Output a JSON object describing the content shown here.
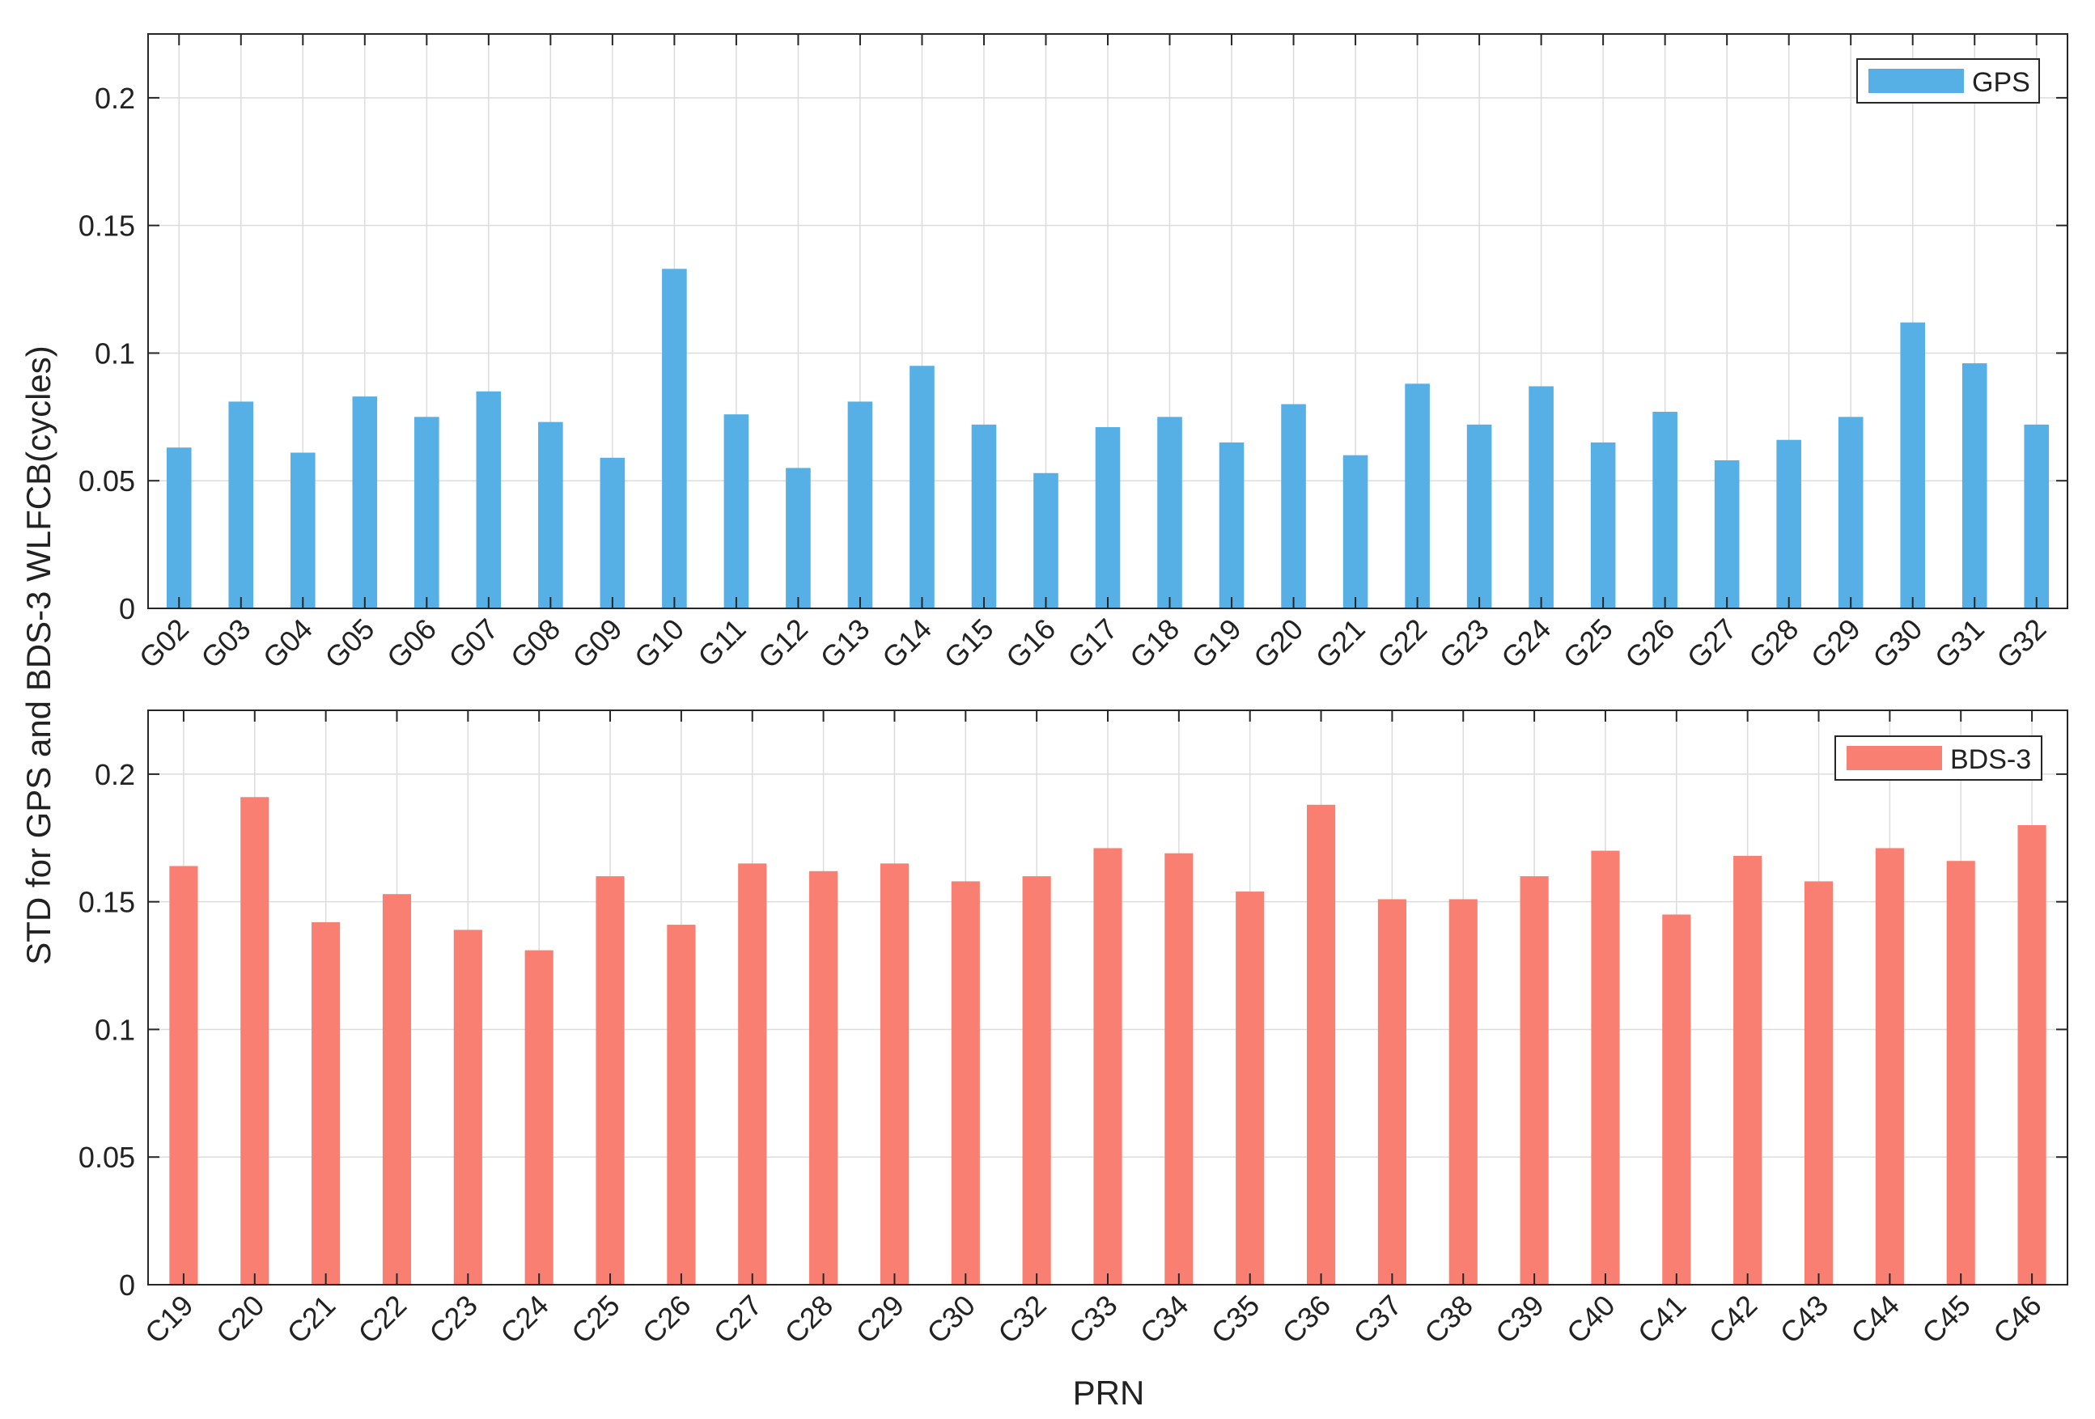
{
  "figure": {
    "ylabel": "STD for GPS and BDS-3 WLFCB(cycles)",
    "xlabel": "PRN"
  },
  "colors": {
    "gps": "#56B0E6",
    "bds": "#F87F72",
    "axis": "#262626",
    "grid": "#dcdcdc"
  },
  "chart_data": [
    {
      "type": "bar",
      "title": "",
      "xlabel": "",
      "ylabel": "",
      "ylim": [
        0,
        0.225
      ],
      "yticks": [
        0,
        0.05,
        0.1,
        0.15,
        0.2
      ],
      "ytick_labels": [
        "0",
        "0.05",
        "0.1",
        "0.15",
        "0.2"
      ],
      "grid": true,
      "legend_position": "top-right",
      "categories": [
        "G02",
        "G03",
        "G04",
        "G05",
        "G06",
        "G07",
        "G08",
        "G09",
        "G10",
        "G11",
        "G12",
        "G13",
        "G14",
        "G15",
        "G16",
        "G17",
        "G18",
        "G19",
        "G20",
        "G21",
        "G22",
        "G23",
        "G24",
        "G25",
        "G26",
        "G27",
        "G28",
        "G29",
        "G30",
        "G31",
        "G32"
      ],
      "series": [
        {
          "name": "GPS",
          "values": [
            0.063,
            0.081,
            0.061,
            0.083,
            0.075,
            0.085,
            0.073,
            0.059,
            0.133,
            0.076,
            0.055,
            0.081,
            0.095,
            0.072,
            0.053,
            0.071,
            0.075,
            0.065,
            0.08,
            0.06,
            0.088,
            0.072,
            0.087,
            0.065,
            0.077,
            0.058,
            0.066,
            0.075,
            0.112,
            0.096,
            0.072
          ]
        }
      ]
    },
    {
      "type": "bar",
      "title": "",
      "xlabel": "PRN",
      "ylabel": "",
      "ylim": [
        0,
        0.225
      ],
      "yticks": [
        0,
        0.05,
        0.1,
        0.15,
        0.2
      ],
      "ytick_labels": [
        "0",
        "0.05",
        "0.1",
        "0.15",
        "0.2"
      ],
      "grid": true,
      "legend_position": "top-right",
      "categories": [
        "C19",
        "C20",
        "C21",
        "C22",
        "C23",
        "C24",
        "C25",
        "C26",
        "C27",
        "C28",
        "C29",
        "C30",
        "C32",
        "C33",
        "C34",
        "C35",
        "C36",
        "C37",
        "C38",
        "C39",
        "C40",
        "C41",
        "C42",
        "C43",
        "C44",
        "C45",
        "C46"
      ],
      "series": [
        {
          "name": "BDS-3",
          "values": [
            0.164,
            0.191,
            0.142,
            0.153,
            0.139,
            0.131,
            0.16,
            0.141,
            0.165,
            0.162,
            0.165,
            0.158,
            0.16,
            0.171,
            0.169,
            0.154,
            0.188,
            0.151,
            0.151,
            0.16,
            0.17,
            0.145,
            0.168,
            0.158,
            0.171,
            0.166,
            0.18
          ]
        }
      ]
    }
  ]
}
